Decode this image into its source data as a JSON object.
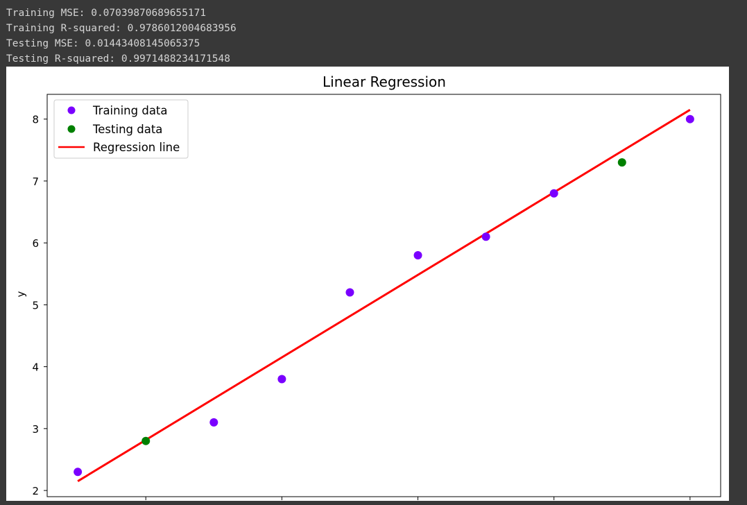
{
  "output": {
    "lines": [
      "Training MSE: 0.07039870689655171",
      "Training R-squared: 0.9786012004683956",
      "Testing MSE: 0.01443408145065375",
      "Testing R-squared: 0.9971488234171548"
    ]
  },
  "colors": {
    "training": "#7a00ff",
    "testing": "#008000",
    "regression": "#ff0000"
  },
  "chart_data": {
    "type": "scatter",
    "title": "Linear Regression",
    "xlabel": "",
    "ylabel": "y",
    "xlim": [
      0.55,
      10.45
    ],
    "ylim": [
      1.9,
      8.4
    ],
    "yticks": [
      2,
      3,
      4,
      5,
      6,
      7,
      8
    ],
    "xticks": [
      2,
      4,
      6,
      8,
      10
    ],
    "legend_position": "top-left",
    "series": [
      {
        "name": "Training data",
        "kind": "points",
        "x": [
          1,
          3,
          4,
          5,
          6,
          7,
          8,
          10
        ],
        "y": [
          2.3,
          3.1,
          3.8,
          5.2,
          5.8,
          6.1,
          6.8,
          8.0
        ]
      },
      {
        "name": "Testing data",
        "kind": "points",
        "x": [
          2,
          9
        ],
        "y": [
          2.8,
          7.3
        ]
      },
      {
        "name": "Regression line",
        "kind": "line",
        "x": [
          1,
          10
        ],
        "y": [
          2.15,
          8.15
        ]
      }
    ]
  }
}
